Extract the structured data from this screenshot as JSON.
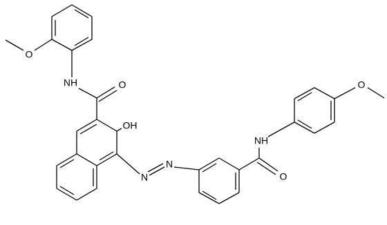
{
  "atoms": [
    {
      "label": "O"
    },
    {
      "label": "NH"
    },
    {
      "label": "O"
    },
    {
      "label": "OH"
    },
    {
      "label": "N"
    },
    {
      "label": "N"
    },
    {
      "label": "NH"
    },
    {
      "label": "O"
    },
    {
      "label": "O"
    }
  ]
}
